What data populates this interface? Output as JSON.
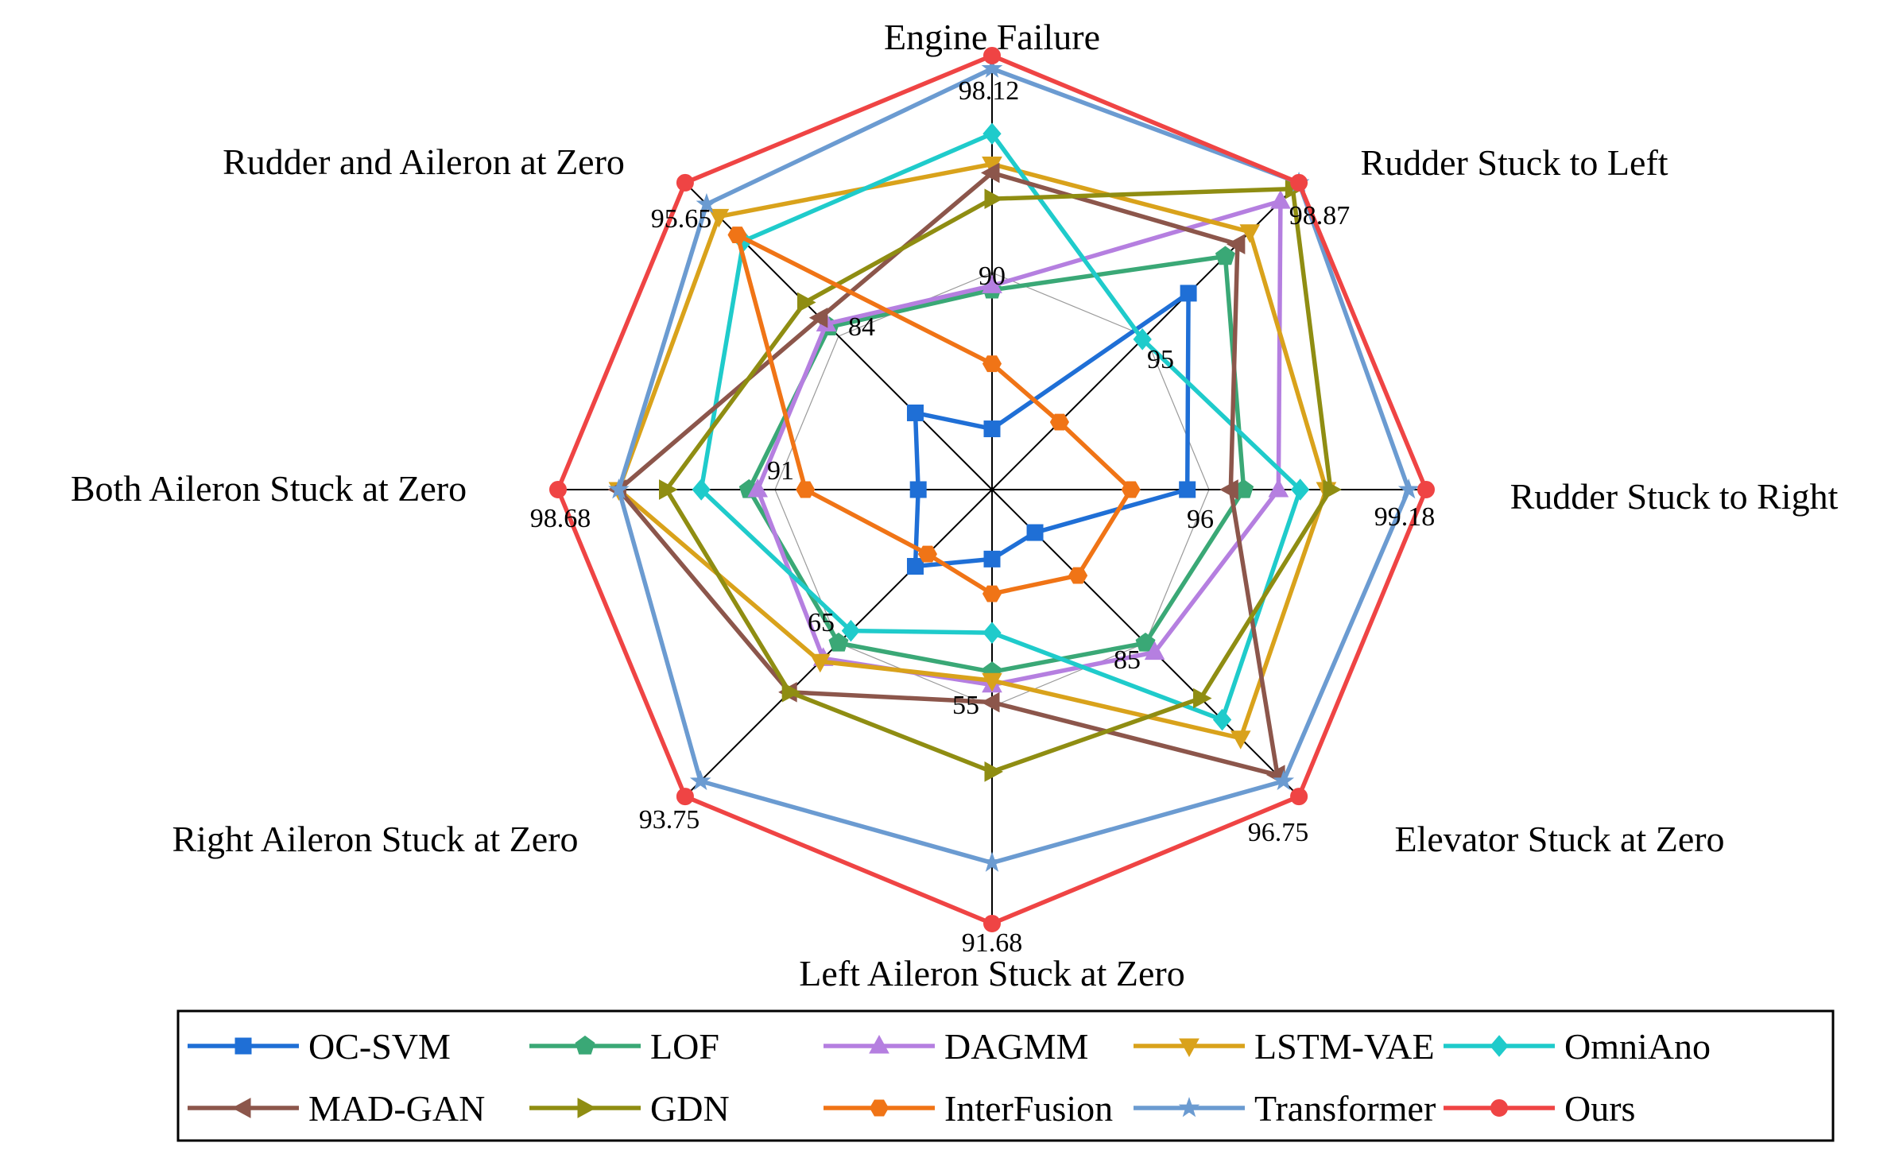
{
  "chart_data": {
    "type": "radar",
    "categories": [
      "Engine Failure",
      "Rudder Stuck to Left",
      "Rudder Stuck to Right",
      "Elevator Stuck at Zero",
      "Left Aileron Stuck at Zero",
      "Right Aileron Stuck at Zero",
      "Both Aileron Stuck at Zero",
      "Rudder and Aileron at Zero"
    ],
    "axis_tick_labels": [
      [
        "90",
        "98.12"
      ],
      [
        "95",
        "98.87"
      ],
      [
        "96",
        "99.18"
      ],
      [
        "85",
        "96.75"
      ],
      [
        "55",
        "91.68"
      ],
      [
        "65",
        "93.75"
      ],
      [
        "91",
        "98.68"
      ],
      [
        "84",
        "95.65"
      ]
    ],
    "scale_note": "values expressed as fraction of each axis radius",
    "series": [
      {
        "name": "OC-SVM",
        "color": "#1f6fd6",
        "marker": "square",
        "values": [
          0.14,
          0.64,
          0.45,
          0.14,
          0.16,
          0.25,
          0.17,
          0.25
        ]
      },
      {
        "name": "LOF",
        "color": "#3aa876",
        "marker": "pentagon",
        "values": [
          0.46,
          0.76,
          0.58,
          0.5,
          0.42,
          0.5,
          0.56,
          0.53
        ]
      },
      {
        "name": "DAGMM",
        "color": "#b57fe0",
        "marker": "triangle-up",
        "values": [
          0.47,
          0.94,
          0.66,
          0.53,
          0.45,
          0.55,
          0.54,
          0.54
        ]
      },
      {
        "name": "LSTM-VAE",
        "color": "#d9a21b",
        "marker": "triangle-down",
        "values": [
          0.75,
          0.84,
          0.77,
          0.81,
          0.44,
          0.56,
          0.86,
          0.89
        ]
      },
      {
        "name": "OmniAno",
        "color": "#1fcbcb",
        "marker": "diamond",
        "values": [
          0.82,
          0.49,
          0.71,
          0.75,
          0.33,
          0.46,
          0.67,
          0.81
        ]
      },
      {
        "name": "MAD-GAN",
        "color": "#8c564b",
        "marker": "triangle-left",
        "values": [
          0.73,
          0.8,
          0.55,
          0.93,
          0.49,
          0.66,
          0.86,
          0.56
        ]
      },
      {
        "name": "GDN",
        "color": "#8f8d12",
        "marker": "triangle-right",
        "values": [
          0.67,
          0.98,
          0.78,
          0.68,
          0.65,
          0.66,
          0.75,
          0.61
        ]
      },
      {
        "name": "InterFusion",
        "color": "#f07416",
        "marker": "hexagon",
        "values": [
          0.29,
          0.22,
          0.32,
          0.28,
          0.24,
          0.21,
          0.43,
          0.83
        ]
      },
      {
        "name": "Transformer",
        "color": "#6b9bd1",
        "marker": "star",
        "values": [
          0.97,
          1.0,
          0.96,
          0.95,
          0.86,
          0.95,
          0.86,
          0.93
        ]
      },
      {
        "name": "Ours",
        "color": "#ef4444",
        "marker": "circle",
        "values": [
          1.0,
          1.0,
          1.0,
          1.0,
          1.0,
          1.0,
          1.0,
          1.0
        ]
      }
    ],
    "legend": {
      "position": "bottom",
      "columns": 5
    }
  }
}
